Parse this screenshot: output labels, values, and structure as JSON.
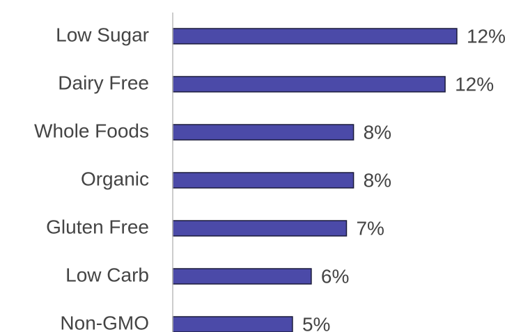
{
  "chart_data": {
    "type": "bar",
    "orientation": "horizontal",
    "categories": [
      "Low Sugar",
      "Dairy Free",
      "Whole Foods",
      "Organic",
      "Gluten Free",
      "Low Carb",
      "Non-GMO"
    ],
    "values": [
      12.1,
      11.6,
      7.7,
      7.7,
      7.4,
      5.9,
      5.1
    ],
    "value_labels": [
      "12%",
      "12%",
      "8%",
      "8%",
      "7%",
      "6%",
      "5%"
    ],
    "color": "#4b4aa8",
    "xlim": [
      0,
      14
    ]
  }
}
